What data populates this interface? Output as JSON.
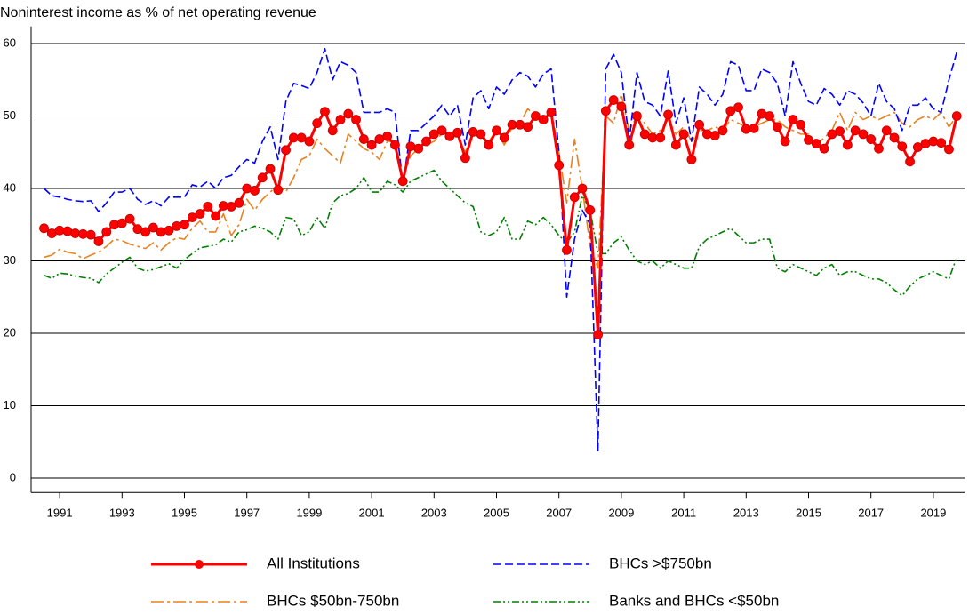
{
  "chart_data": {
    "type": "line",
    "title": "Noninterest income as % of net operating revenue",
    "x": [
      1990.5,
      1990.75,
      1991,
      1991.25,
      1991.5,
      1991.75,
      1992,
      1992.25,
      1992.5,
      1992.75,
      1993,
      1993.25,
      1993.5,
      1993.75,
      1994,
      1994.25,
      1994.5,
      1994.75,
      1995,
      1995.25,
      1995.5,
      1995.75,
      1996,
      1996.25,
      1996.5,
      1996.75,
      1997,
      1997.25,
      1997.5,
      1997.75,
      1998,
      1998.25,
      1998.5,
      1998.75,
      1999,
      1999.25,
      1999.5,
      1999.75,
      2000,
      2000.25,
      2000.5,
      2000.75,
      2001,
      2001.25,
      2001.5,
      2001.75,
      2002,
      2002.25,
      2002.5,
      2002.75,
      2003,
      2003.25,
      2003.5,
      2003.75,
      2004,
      2004.25,
      2004.5,
      2004.75,
      2005,
      2005.25,
      2005.5,
      2005.75,
      2006,
      2006.25,
      2006.5,
      2006.75,
      2007,
      2007.25,
      2007.5,
      2007.75,
      2008,
      2008.25,
      2008.5,
      2008.75,
      2009,
      2009.25,
      2009.5,
      2009.75,
      2010,
      2010.25,
      2010.5,
      2010.75,
      2011,
      2011.25,
      2011.5,
      2011.75,
      2012,
      2012.25,
      2012.5,
      2012.75,
      2013,
      2013.25,
      2013.5,
      2013.75,
      2014,
      2014.25,
      2014.5,
      2014.75,
      2015,
      2015.25,
      2015.5,
      2015.75,
      2016,
      2016.25,
      2016.5,
      2016.75,
      2017,
      2017.25,
      2017.5,
      2017.75,
      2018,
      2018.25,
      2018.5,
      2018.75,
      2019,
      2019.25,
      2019.5,
      2019.75
    ],
    "series": [
      {
        "name": "All Institutions",
        "color": "#ff0000",
        "style": "solid",
        "marker": "circle",
        "values": [
          34.5,
          33.8,
          34.2,
          34.1,
          33.8,
          33.7,
          33.6,
          32.7,
          34.0,
          35.0,
          35.2,
          35.8,
          34.4,
          34.0,
          34.6,
          34.0,
          34.2,
          34.8,
          35.0,
          36.0,
          36.5,
          37.5,
          36.2,
          37.6,
          37.5,
          38.0,
          40.0,
          39.7,
          41.5,
          42.7,
          39.8,
          45.3,
          47.0,
          47.0,
          46.5,
          49.0,
          50.6,
          48.0,
          49.5,
          50.3,
          49.5,
          46.8,
          46.0,
          46.8,
          47.2,
          46.0,
          41.0,
          45.8,
          45.5,
          46.5,
          47.5,
          48.0,
          47.2,
          47.7,
          44.2,
          47.8,
          47.5,
          46.0,
          48.0,
          47.0,
          48.8,
          48.8,
          48.5,
          50.0,
          49.5,
          50.5,
          43.2,
          31.5,
          38.8,
          40.0,
          37.0,
          19.8,
          50.7,
          52.2,
          51.3,
          46.0,
          50.0,
          47.5,
          47.0,
          47.0,
          50.2,
          46.0,
          47.5,
          44.0,
          48.8,
          47.5,
          47.3,
          48.0,
          50.7,
          51.2,
          48.2,
          48.3,
          50.3,
          50.0,
          48.5,
          46.5,
          49.5,
          48.8,
          46.7,
          46.2,
          45.5,
          47.5,
          47.9,
          46.0,
          48.0,
          47.5,
          46.8,
          45.5,
          48.0,
          47.0,
          45.8,
          43.7,
          45.7,
          46.2,
          46.5,
          46.3,
          45.4,
          50.0
        ]
      },
      {
        "name": "BHCs >$750bn",
        "color": "#0000ff",
        "style": "dashed",
        "values": [
          40.0,
          39.0,
          38.8,
          38.5,
          38.3,
          38.2,
          38.3,
          36.8,
          38.0,
          39.5,
          39.5,
          40.0,
          38.5,
          37.8,
          38.3,
          37.6,
          38.8,
          38.8,
          38.8,
          40.5,
          40.2,
          41.0,
          40.0,
          41.5,
          41.8,
          43.0,
          44.0,
          43.5,
          46.5,
          48.5,
          44.0,
          52.0,
          54.5,
          54.2,
          53.8,
          56.0,
          59.3,
          55.0,
          57.5,
          57.0,
          56.0,
          50.5,
          50.5,
          50.5,
          51.0,
          50.5,
          40.5,
          48.0,
          48.0,
          49.0,
          50.0,
          51.5,
          50.0,
          51.5,
          46.0,
          52.5,
          53.5,
          51.0,
          54.0,
          53.0,
          55.0,
          56.0,
          55.5,
          54.0,
          55.8,
          56.5,
          45.0,
          25.0,
          33.0,
          37.0,
          35.0,
          3.8,
          56.5,
          58.5,
          56.0,
          46.5,
          56.0,
          52.0,
          51.5,
          50.0,
          56.2,
          49.0,
          52.5,
          46.5,
          54.0,
          53.0,
          51.5,
          53.0,
          57.5,
          57.0,
          53.5,
          53.5,
          56.5,
          56.0,
          54.5,
          50.0,
          57.5,
          54.5,
          52.0,
          51.5,
          53.8,
          53.0,
          51.5,
          53.5,
          53.0,
          51.8,
          50.0,
          54.5,
          52.0,
          51.0,
          48.0,
          51.5,
          51.5,
          52.5,
          51.0,
          50.5,
          55.0,
          58.8
        ]
      },
      {
        "name": "BHCs $50bn-750bn",
        "color": "#e8821e",
        "style": "dashdot",
        "values": [
          30.5,
          30.8,
          31.6,
          31.2,
          31.0,
          30.3,
          30.8,
          31.2,
          32.0,
          33.0,
          32.8,
          32.3,
          32.0,
          31.7,
          32.5,
          31.5,
          32.5,
          33.2,
          33.0,
          34.5,
          35.5,
          34.0,
          34.0,
          36.5,
          33.5,
          35.0,
          38.5,
          37.0,
          38.5,
          39.5,
          40.5,
          39.5,
          41.5,
          44.0,
          44.5,
          46.8,
          45.5,
          44.5,
          43.5,
          47.5,
          46.5,
          45.5,
          45.0,
          44.0,
          46.5,
          46.5,
          41.5,
          44.5,
          45.5,
          46.0,
          46.5,
          47.5,
          47.5,
          47.0,
          45.0,
          47.5,
          47.5,
          46.5,
          48.0,
          46.0,
          48.5,
          49.0,
          51.0,
          50.0,
          49.0,
          51.0,
          45.0,
          38.0,
          46.8,
          40.0,
          32.0,
          29.0,
          50.0,
          49.0,
          53.0,
          48.0,
          50.0,
          49.0,
          47.5,
          48.0,
          49.5,
          47.5,
          48.5,
          46.5,
          48.0,
          48.0,
          48.5,
          48.0,
          49.5,
          49.0,
          48.5,
          48.5,
          49.0,
          49.5,
          49.5,
          48.5,
          48.0,
          47.5,
          47.5,
          46.0,
          47.0,
          48.0,
          50.5,
          48.0,
          50.5,
          49.5,
          50.0,
          49.5,
          50.0,
          50.5,
          49.0,
          48.5,
          49.5,
          50.0,
          49.5,
          50.5,
          48.5,
          50.0
        ]
      },
      {
        "name": "Banks and BHCs <$50bn",
        "color": "#008000",
        "style": "dashdotdot",
        "values": [
          28.0,
          27.6,
          28.3,
          28.2,
          27.9,
          27.7,
          27.6,
          27.0,
          28.2,
          29.0,
          29.8,
          30.5,
          29.0,
          28.6,
          28.8,
          29.2,
          29.6,
          29.0,
          30.2,
          31.0,
          31.8,
          32.0,
          32.2,
          33.0,
          32.6,
          34.0,
          34.3,
          34.8,
          34.5,
          34.0,
          33.0,
          36.0,
          35.8,
          33.5,
          34.0,
          36.0,
          34.5,
          38.0,
          39.0,
          39.3,
          40.0,
          41.5,
          39.5,
          39.5,
          41.0,
          40.5,
          39.5,
          41.0,
          41.5,
          42.0,
          42.5,
          41.0,
          40.0,
          39.0,
          38.0,
          37.5,
          34.0,
          33.5,
          34.0,
          36.0,
          33.0,
          33.0,
          35.5,
          35.0,
          36.0,
          35.0,
          33.5,
          32.5,
          34.0,
          39.0,
          37.0,
          31.0,
          31.0,
          32.5,
          33.3,
          31.5,
          30.0,
          29.5,
          30.0,
          29.0,
          30.0,
          29.5,
          29.0,
          29.0,
          32.0,
          33.0,
          33.5,
          34.0,
          34.5,
          33.5,
          32.5,
          32.5,
          33.0,
          33.0,
          29.0,
          28.5,
          29.5,
          29.0,
          28.5,
          28.0,
          29.0,
          29.5,
          28.0,
          28.5,
          28.5,
          28.0,
          27.5,
          27.5,
          27.0,
          26.0,
          25.2,
          26.5,
          27.5,
          28.0,
          28.5,
          28.0,
          27.5,
          30.5
        ]
      }
    ],
    "xlim": [
      1990,
      2020
    ],
    "xticks": [
      1991,
      1993,
      1995,
      1997,
      1999,
      2001,
      2003,
      2005,
      2007,
      2009,
      2011,
      2013,
      2015,
      2017,
      2019
    ],
    "ylim": [
      -2,
      62
    ],
    "yticks": [
      0,
      10,
      20,
      30,
      40,
      50,
      60
    ],
    "grid": true
  }
}
